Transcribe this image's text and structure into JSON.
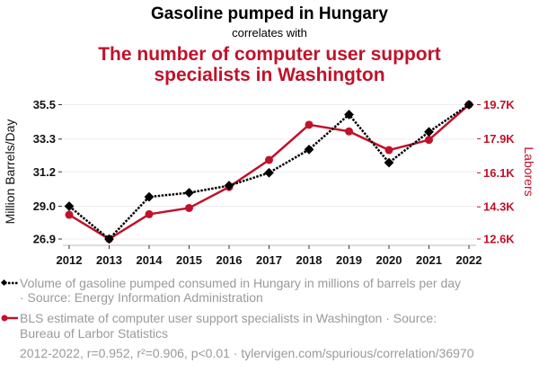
{
  "chart_data": {
    "type": "line",
    "title": "Gasoline pumped in Hungary",
    "subtitle": "correlates with",
    "title2_lines": [
      "The number of computer user support",
      "specialists in Washington"
    ],
    "x": [
      2012,
      2013,
      2014,
      2015,
      2016,
      2017,
      2018,
      2019,
      2020,
      2021,
      2022
    ],
    "ylabel_left": "Million Barrels/Day",
    "ylabel_right": "Laborers",
    "ylim_left": [
      26.9,
      35.5
    ],
    "ylim_right": [
      12600,
      19700
    ],
    "yticks_left": [
      "35.5",
      "33.3",
      "31.2",
      "29.0",
      "26.9"
    ],
    "yticks_left_values": [
      35.5,
      33.3,
      31.2,
      29.0,
      26.9
    ],
    "yticks_right": [
      "19.7K",
      "17.9K",
      "16.1K",
      "14.3K",
      "12.6K"
    ],
    "yticks_right_values": [
      19700,
      17900,
      16100,
      14300,
      12600
    ],
    "grid": true,
    "series": [
      {
        "name": "Volume of gasoline pumped consumed in Hungary in millions of barrels per day",
        "axis": "left",
        "color": "#000000",
        "values": [
          29.0,
          26.9,
          29.6,
          29.86,
          30.32,
          31.14,
          32.63,
          34.87,
          31.79,
          33.76,
          35.5
        ]
      },
      {
        "name": "BLS estimate of computer user support specialists in Washington",
        "axis": "right",
        "color": "#c0122a",
        "values": [
          13880,
          12600,
          13910,
          14240,
          15350,
          16780,
          18640,
          18290,
          17300,
          17840,
          19700
        ]
      }
    ],
    "legend": [
      [
        "Volume of gasoline pumped consumed in Hungary in millions of barrels per day",
        "· Source: Energy Information Administration"
      ],
      [
        "BLS estimate of computer user support specialists in Washington · Source:",
        "Bureau of Larbor Statistics"
      ]
    ],
    "footer": "2012-2022, r=0.952, r²=0.906, p<0.01 · tylervigen.com/spurious/correlation/36970"
  }
}
